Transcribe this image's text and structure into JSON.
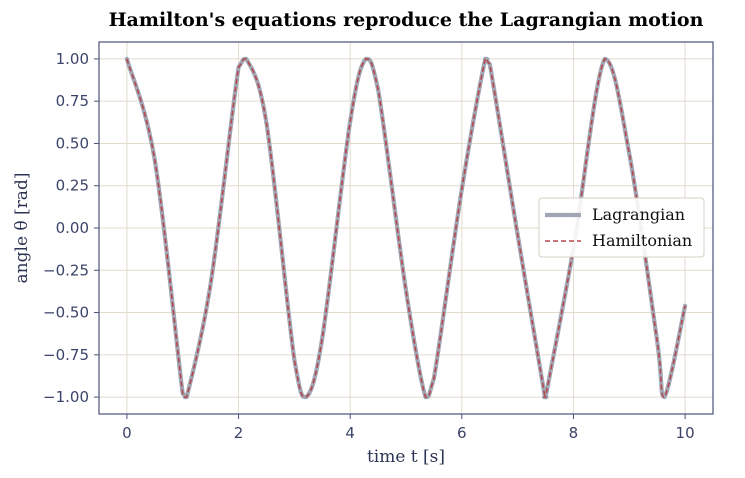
{
  "chart_data": {
    "type": "line",
    "title": "Hamilton's equations reproduce the Lagrangian motion",
    "xlabel": "time  t  [s]",
    "ylabel": "angle  θ  [rad]",
    "xlim": [
      -0.5,
      10.5
    ],
    "ylim": [
      -1.1,
      1.1
    ],
    "xticks": [
      0,
      2,
      4,
      6,
      8,
      10
    ],
    "xtick_labels": [
      "0",
      "2",
      "4",
      "6",
      "8",
      "10"
    ],
    "yticks": [
      1.0,
      0.75,
      0.5,
      0.25,
      0.0,
      -0.25,
      -0.5,
      -0.75,
      -1.0
    ],
    "ytick_labels": [
      "1.00",
      "0.75",
      "0.50",
      "0.25",
      "0.00",
      "−0.25",
      "−0.50",
      "−0.75",
      "−1.00"
    ],
    "grid": true,
    "legend_position": "center-right",
    "x": [
      0,
      0.5,
      1.0,
      1.07,
      1.5,
      2.0,
      2.14,
      2.5,
      3.0,
      3.21,
      3.5,
      4.0,
      4.28,
      4.5,
      5.0,
      5.35,
      5.5,
      6.0,
      6.42,
      6.5,
      7.0,
      7.49,
      7.5,
      8.0,
      8.56,
      9.0,
      9.5,
      9.63,
      10.0
    ],
    "series": [
      {
        "name": "Lagrangian",
        "color": "#a0a6b4",
        "style": "solid",
        "values": [
          1.0,
          0.4,
          -0.98,
          -1.0,
          -0.33,
          0.95,
          1.0,
          0.62,
          -0.78,
          -1.0,
          -0.65,
          0.63,
          1.0,
          0.82,
          -0.37,
          -1.0,
          -0.89,
          0.23,
          1.0,
          0.97,
          -0.04,
          -1.0,
          -1.0,
          -0.12,
          1.0,
          0.44,
          -0.67,
          -1.0,
          -0.46
        ]
      },
      {
        "name": "Hamiltonian",
        "color": "#b5474b",
        "style": "dashed",
        "values": [
          1.0,
          0.4,
          -0.98,
          -1.0,
          -0.33,
          0.95,
          1.0,
          0.62,
          -0.78,
          -1.0,
          -0.65,
          0.63,
          1.0,
          0.82,
          -0.37,
          -1.0,
          -0.89,
          0.23,
          1.0,
          0.97,
          -0.04,
          -1.0,
          -1.0,
          -0.12,
          1.0,
          0.44,
          -0.67,
          -1.0,
          -0.46
        ]
      }
    ]
  }
}
